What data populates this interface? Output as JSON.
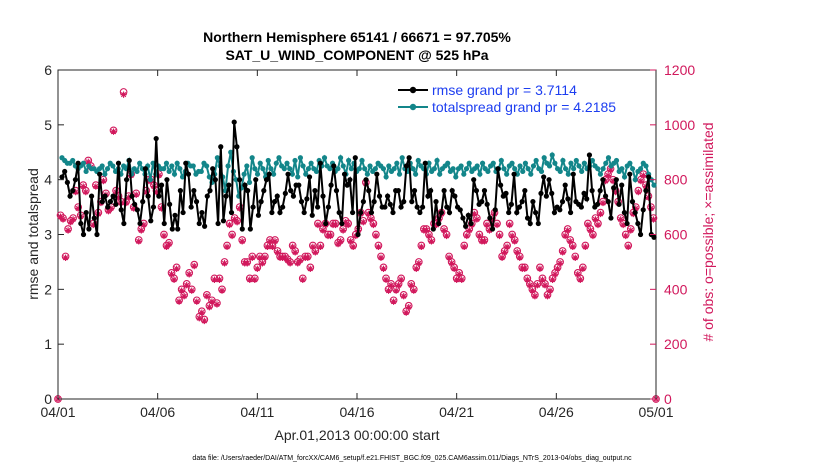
{
  "chart_data": {
    "type": "line",
    "title_line1": "Northern Hemisphere 65141 / 66671 = 97.705%",
    "title_line2": "SAT_U_WIND_COMPONENT @ 525 hPa",
    "xlabel": "Apr.01,2013 00:00:00 start",
    "ylabel_left": "rmse and totalspread",
    "ylabel_right": "# of obs: o=possible; ×=assimilated",
    "footer": "data file: /Users/raeder/DAI/ATM_forcXX/CAM6_setup/f.e21.FHIST_BGC.f09_025.CAM6assim.011/Diags_NTrS_2013-04/obs_diag_output.nc",
    "x_tick_labels": [
      "04/01",
      "04/06",
      "04/11",
      "04/16",
      "04/21",
      "04/26",
      "05/01"
    ],
    "x_tick_days": [
      0,
      5,
      10,
      15,
      20,
      25,
      30
    ],
    "xlim_days": [
      0,
      30
    ],
    "ylim_left": [
      0,
      6
    ],
    "y_ticks_left": [
      "0",
      "1",
      "2",
      "3",
      "4",
      "5",
      "6"
    ],
    "ylim_right": [
      0,
      1200
    ],
    "y_ticks_right": [
      "0",
      "200",
      "400",
      "600",
      "800",
      "1000",
      "1200"
    ],
    "colors": {
      "rmse": "#000000",
      "spread": "#13868a",
      "obs": "#d1185c",
      "legend_text": "#1d3ef0"
    },
    "series": [
      {
        "name": "rmse grand pr = 3.7114",
        "axis": "left",
        "values": [
          4.05,
          4.15,
          3.95,
          3.7,
          3.8,
          4.0,
          4.3,
          3.2,
          3.0,
          3.4,
          3.1,
          3.7,
          3.3,
          3.0,
          4.1,
          3.6,
          3.7,
          3.5,
          3.6,
          3.7,
          3.55,
          4.3,
          3.45,
          3.2,
          4.0,
          4.35,
          3.7,
          3.55,
          3.45,
          3.2,
          3.6,
          4.2,
          3.7,
          3.25,
          3.5,
          4.75,
          3.7,
          3.9,
          3.2,
          4.0,
          3.55,
          3.1,
          3.35,
          3.1,
          3.8,
          3.4,
          4.3,
          4.1,
          3.5,
          3.8,
          3.6,
          3.2,
          3.4,
          3.15,
          3.7,
          3.8,
          4.2,
          4.0,
          3.2,
          4.6,
          3.25,
          3.7,
          3.9,
          3.4,
          5.05,
          4.6,
          4.0,
          3.1,
          3.9,
          3.8,
          3.1,
          3.5,
          4.0,
          3.35,
          3.6,
          3.8,
          4.0,
          4.1,
          3.4,
          3.6,
          3.7,
          3.4,
          3.5,
          3.75,
          4.1,
          3.8,
          3.7,
          3.9,
          3.9,
          3.6,
          3.4,
          3.65,
          4.05,
          3.35,
          3.8,
          3.5,
          4.3,
          3.7,
          3.2,
          3.5,
          3.9,
          4.25,
          3.8,
          3.4,
          3.2,
          4.1,
          3.9,
          4.0,
          3.4,
          4.4,
          3.0,
          3.4,
          3.6,
          4.0,
          3.8,
          3.4,
          3.6,
          4.1,
          3.7,
          3.5,
          3.5,
          3.7,
          3.55,
          3.4,
          3.8,
          3.8,
          3.5,
          3.6,
          4.25,
          4.4,
          3.6,
          3.8,
          3.5,
          3.4,
          3.5,
          4.3,
          3.7,
          3.8,
          3.1,
          3.6,
          3.2,
          3.4,
          3.8,
          3.5,
          3.4,
          3.8,
          3.7,
          3.5,
          3.45,
          3.3,
          3.15,
          3.35,
          3.2,
          4.0,
          3.8,
          3.55,
          3.6,
          3.8,
          3.55,
          3.3,
          3.1,
          3.45,
          4.2,
          3.9,
          3.7,
          3.75,
          3.4,
          3.55,
          4.1,
          3.4,
          3.5,
          3.6,
          3.8,
          3.3,
          3.2,
          3.6,
          3.4,
          3.2,
          3.75,
          4.05,
          3.7,
          4.0,
          3.75,
          3.4,
          3.5,
          3.45,
          3.6,
          3.9,
          3.65,
          3.4,
          4.1,
          3.6,
          3.55,
          3.5,
          3.75,
          3.65,
          4.45,
          3.8,
          3.5,
          3.55,
          3.8,
          4.0,
          3.7,
          3.6,
          3.3,
          3.85,
          4.0,
          3.55,
          3.9,
          3.4,
          3.2,
          4.1,
          3.6,
          3.4,
          3.2,
          3.0,
          3.45,
          3.8,
          4.05,
          3.0,
          2.95
        ]
      },
      {
        "name": "totalspread grand pr = 4.2185",
        "axis": "left",
        "values": [
          4.4,
          4.35,
          4.3,
          4.3,
          4.35,
          4.25,
          4.2,
          4.25,
          4.3,
          4.15,
          4.25,
          4.2,
          4.2,
          4.15,
          4.2,
          4.25,
          4.1,
          4.2,
          4.3,
          4.25,
          4.15,
          4.2,
          4.1,
          4.25,
          4.2,
          4.35,
          4.1,
          4.2,
          4.15,
          4.3,
          4.2,
          4.1,
          4.25,
          4.0,
          4.3,
          4.1,
          4.25,
          4.2,
          4.2,
          4.3,
          4.15,
          4.25,
          4.1,
          4.3,
          4.2,
          4.05,
          4.15,
          4.3,
          4.25,
          4.25,
          4.1,
          4.15,
          4.15,
          4.3,
          4.25,
          4.05,
          3.95,
          4.1,
          4.4,
          4.25,
          4.05,
          3.8,
          4.25,
          4.5,
          4.15,
          4.0,
          3.7,
          3.85,
          4.1,
          4.25,
          3.95,
          4.4,
          4.2,
          4.1,
          4.3,
          4.2,
          4.05,
          4.35,
          4.2,
          4.1,
          4.3,
          4.4,
          4.25,
          4.2,
          4.3,
          4.2,
          4.1,
          4.35,
          4.05,
          4.4,
          4.25,
          4.1,
          4.2,
          4.3,
          4.2,
          4.15,
          4.35,
          4.25,
          4.4,
          4.25,
          4.2,
          4.3,
          4.15,
          4.2,
          4.4,
          4.25,
          4.1,
          4.35,
          4.2,
          4.3,
          4.15,
          4.2,
          4.35,
          4.2,
          4.1,
          4.25,
          4.15,
          4.2,
          4.3,
          4.25,
          4.2,
          4.05,
          4.25,
          4.15,
          4.2,
          4.3,
          4.1,
          4.4,
          4.2,
          4.15,
          4.3,
          4.2,
          4.1,
          4.35,
          4.25,
          4.2,
          4.1,
          4.3,
          4.15,
          4.2,
          4.35,
          4.1,
          4.2,
          4.25,
          4.3,
          4.15,
          4.2,
          4.05,
          4.2,
          4.25,
          4.1,
          4.2,
          4.3,
          4.15,
          4.2,
          4.25,
          4.1,
          4.3,
          4.2,
          4.15,
          4.25,
          4.3,
          4.15,
          4.2,
          4.35,
          4.2,
          4.1,
          4.25,
          4.3,
          4.2,
          4.1,
          4.25,
          4.15,
          4.3,
          4.2,
          4.1,
          4.25,
          4.35,
          4.2,
          4.15,
          4.4,
          4.3,
          4.25,
          4.45,
          4.3,
          4.2,
          4.15,
          4.35,
          4.2,
          4.1,
          4.3,
          4.2,
          4.35,
          4.25,
          4.15,
          4.3,
          4.2,
          4.25,
          4.35,
          4.25,
          4.2,
          4.1,
          4.2,
          4.3,
          4.4,
          4.25,
          4.3,
          4.35,
          4.15,
          4.2,
          4.05,
          4.25,
          4.3,
          4.2,
          4.0,
          4.15,
          4.2,
          4.3,
          4.25,
          4.1,
          4.0,
          3.9
        ]
      },
      {
        "name": "obs possible (o)",
        "axis": "right",
        "values": [
          0,
          670,
          660,
          520,
          620,
          650,
          660,
          760,
          700,
          670,
          780,
          760,
          870,
          850,
          640,
          780,
          680,
          720,
          800,
          750,
          690,
          700,
          980,
          760,
          740,
          720,
          1120,
          720,
          740,
          820,
          700,
          750,
          580,
          620,
          640,
          760,
          800,
          800,
          780,
          760,
          820,
          700,
          600,
          560,
          570,
          460,
          440,
          480,
          360,
          400,
          380,
          420,
          460,
          400,
          490,
          360,
          300,
          320,
          290,
          380,
          340,
          360,
          440,
          350,
          440,
          400,
          500,
          560,
          640,
          600,
          660,
          650,
          700,
          580,
          500,
          500,
          440,
          520,
          440,
          480,
          520,
          500,
          520,
          560,
          580,
          560,
          580,
          540,
          520,
          520,
          520,
          510,
          500,
          560,
          540,
          500,
          510,
          440,
          520,
          520,
          480,
          560,
          540,
          640,
          560,
          620,
          640,
          600,
          600,
          640,
          640,
          570,
          580,
          620,
          650,
          640,
          580,
          560,
          600,
          620,
          680,
          650,
          790,
          680,
          660,
          640,
          600,
          560,
          520,
          480,
          440,
          400,
          420,
          360,
          400,
          420,
          440,
          380,
          320,
          340,
          420,
          400,
          480,
          500,
          560,
          620,
          620,
          600,
          580,
          640,
          640,
          660,
          680,
          620,
          600,
          520,
          500,
          480,
          440,
          460,
          440,
          560,
          600,
          620,
          640,
          680,
          660,
          600,
          580,
          580,
          640,
          620,
          660,
          680,
          640,
          600,
          520,
          540,
          560,
          640,
          600,
          580,
          540,
          520,
          480,
          480,
          440,
          420,
          400,
          380,
          420,
          480,
          440,
          420,
          380,
          400,
          440,
          460,
          480,
          500,
          540,
          600,
          620,
          580,
          560,
          520,
          460,
          440,
          480,
          560,
          640,
          620,
          600,
          660,
          640,
          680,
          720,
          800,
          820,
          840,
          800,
          760,
          720,
          660,
          640,
          600,
          560,
          620,
          680,
          700,
          760,
          800,
          820,
          780,
          740,
          700,
          660,
          0
        ]
      },
      {
        "name": "obs assimilated (×)",
        "axis": "right",
        "values": [
          0,
          665,
          655,
          515,
          615,
          645,
          655,
          755,
          695,
          665,
          775,
          755,
          865,
          845,
          635,
          775,
          675,
          715,
          795,
          745,
          685,
          695,
          975,
          755,
          735,
          715,
          1110,
          715,
          735,
          815,
          695,
          745,
          575,
          615,
          635,
          755,
          795,
          795,
          775,
          755,
          815,
          695,
          595,
          555,
          565,
          455,
          435,
          475,
          355,
          395,
          375,
          415,
          455,
          395,
          485,
          355,
          295,
          315,
          285,
          375,
          335,
          355,
          435,
          345,
          435,
          395,
          495,
          555,
          635,
          595,
          655,
          645,
          695,
          575,
          495,
          495,
          435,
          515,
          435,
          475,
          515,
          495,
          515,
          555,
          575,
          555,
          575,
          535,
          515,
          515,
          515,
          505,
          495,
          555,
          535,
          495,
          505,
          435,
          515,
          515,
          475,
          555,
          535,
          635,
          555,
          615,
          635,
          595,
          595,
          635,
          635,
          565,
          575,
          615,
          645,
          635,
          575,
          555,
          595,
          615,
          675,
          645,
          785,
          675,
          655,
          635,
          595,
          555,
          515,
          475,
          435,
          395,
          415,
          355,
          395,
          415,
          435,
          375,
          315,
          335,
          415,
          395,
          475,
          495,
          555,
          615,
          615,
          595,
          575,
          635,
          635,
          655,
          675,
          615,
          595,
          515,
          495,
          475,
          435,
          455,
          435,
          555,
          595,
          615,
          635,
          675,
          655,
          595,
          575,
          575,
          635,
          615,
          655,
          675,
          635,
          595,
          515,
          535,
          555,
          635,
          595,
          575,
          535,
          515,
          475,
          475,
          435,
          415,
          395,
          375,
          415,
          475,
          435,
          415,
          375,
          395,
          435,
          455,
          475,
          495,
          535,
          595,
          615,
          575,
          555,
          515,
          455,
          435,
          475,
          555,
          635,
          615,
          595,
          655,
          635,
          675,
          715,
          795,
          815,
          835,
          795,
          755,
          715,
          655,
          635,
          595,
          555,
          615,
          675,
          695,
          755,
          795,
          815,
          775,
          735,
          695,
          655,
          0
        ]
      }
    ]
  }
}
